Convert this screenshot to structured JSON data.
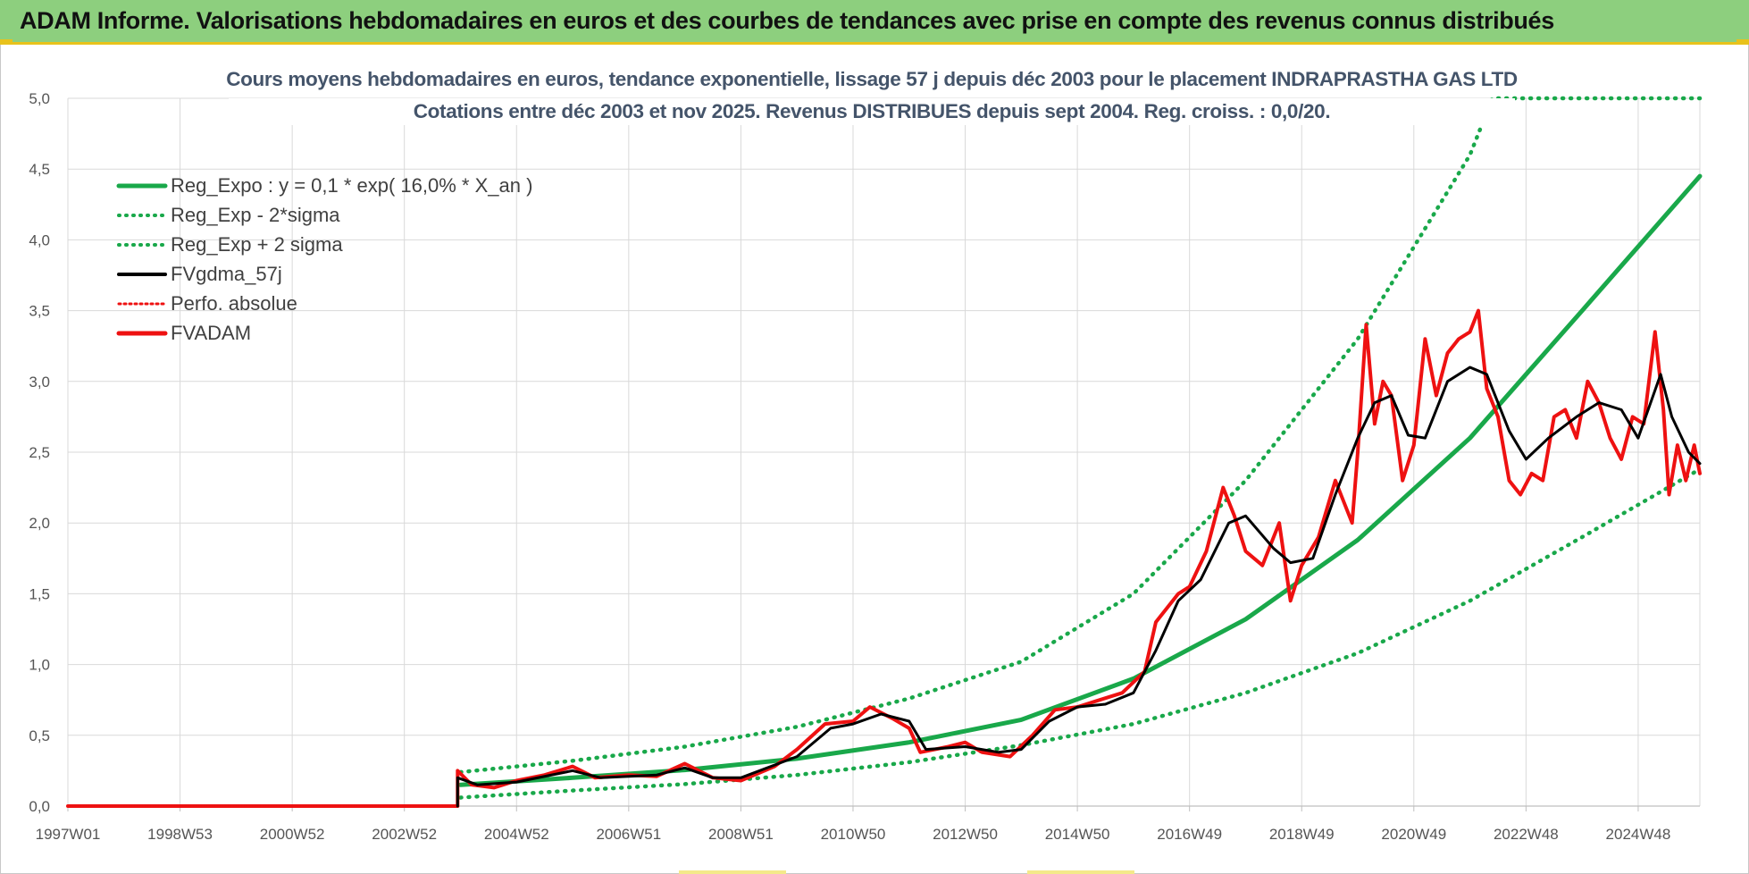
{
  "header": {
    "title": "ADAM Informe. Valorisations hebdomadaires en euros et des courbes de tendances avec prise en compte des revenus connus distribués"
  },
  "colors": {
    "banner": "#8dcf7e",
    "accent": "#e8c21c",
    "reg_green": "#19a84a",
    "fvgdma": "#000000",
    "fvadam": "#ee1111",
    "title_text": "#44546a"
  },
  "chart_data": {
    "type": "line",
    "title_lines": [
      "Cours moyens hebdomadaires en euros, tendance exponentielle, lissage 57 j depuis déc 2003 pour le placement INDRAPRASTHA GAS LTD",
      "Cotations entre déc 2003 et nov 2025.  Revenus DISTRIBUES depuis sept 2004.  Reg. croiss. : 0,0/20."
    ],
    "y_ticks": [
      "0,0",
      "0,5",
      "1,0",
      "1,5",
      "2,0",
      "2,5",
      "3,0",
      "3,5",
      "4,0",
      "4,5",
      "5,0"
    ],
    "ylim": [
      0,
      5
    ],
    "x_ticks": [
      {
        "label": "1997W01",
        "t": 1997.0
      },
      {
        "label": "1998W53",
        "t": 1999.0
      },
      {
        "label": "2000W52",
        "t": 2001.0
      },
      {
        "label": "2002W52",
        "t": 2003.0
      },
      {
        "label": "2004W52",
        "t": 2005.0
      },
      {
        "label": "2006W51",
        "t": 2007.0
      },
      {
        "label": "2008W51",
        "t": 2009.0
      },
      {
        "label": "2010W50",
        "t": 2011.0
      },
      {
        "label": "2012W50",
        "t": 2013.0
      },
      {
        "label": "2014W50",
        "t": 2015.0
      },
      {
        "label": "2016W49",
        "t": 2017.0
      },
      {
        "label": "2018W49",
        "t": 2019.0
      },
      {
        "label": "2020W49",
        "t": 2021.0
      },
      {
        "label": "2022W48",
        "t": 2023.0
      },
      {
        "label": "2024W48",
        "t": 2025.0
      }
    ],
    "xlim": [
      1997.0,
      2026.1
    ],
    "legend": [
      {
        "label": "Reg_Expo : y = 0,1 * exp( 16,0% *  X_an )",
        "style": "solid-green"
      },
      {
        "label": "Reg_Exp - 2*sigma",
        "style": "dotted-green"
      },
      {
        "label": "Reg_Exp + 2 sigma",
        "style": "dotted-green"
      },
      {
        "label": "FVgdma_57j",
        "style": "solid-black"
      },
      {
        "label": "Perfo. absolue",
        "style": "dotted-red"
      },
      {
        "label": "FVADAM",
        "style": "solid-red"
      }
    ],
    "series": [
      {
        "name": "Reg_Expo",
        "points": [
          [
            2004.0,
            0.15
          ],
          [
            2006.0,
            0.2
          ],
          [
            2008.0,
            0.255
          ],
          [
            2010.0,
            0.335
          ],
          [
            2012.0,
            0.45
          ],
          [
            2014.0,
            0.61
          ],
          [
            2016.0,
            0.9
          ],
          [
            2018.0,
            1.32
          ],
          [
            2020.0,
            1.88
          ],
          [
            2022.0,
            2.6
          ],
          [
            2024.0,
            3.5
          ],
          [
            2026.1,
            4.45
          ]
        ]
      },
      {
        "name": "Reg_Exp - 2*sigma",
        "points": [
          [
            2004.0,
            0.06
          ],
          [
            2006.0,
            0.11
          ],
          [
            2008.0,
            0.155
          ],
          [
            2010.0,
            0.22
          ],
          [
            2012.0,
            0.31
          ],
          [
            2014.0,
            0.43
          ],
          [
            2016.0,
            0.58
          ],
          [
            2018.0,
            0.8
          ],
          [
            2020.0,
            1.08
          ],
          [
            2022.0,
            1.45
          ],
          [
            2024.0,
            1.9
          ],
          [
            2026.1,
            2.38
          ]
        ]
      },
      {
        "name": "Reg_Exp + 2 sigma",
        "points": [
          [
            2004.0,
            0.24
          ],
          [
            2006.0,
            0.32
          ],
          [
            2008.0,
            0.42
          ],
          [
            2010.0,
            0.56
          ],
          [
            2012.0,
            0.76
          ],
          [
            2014.0,
            1.02
          ],
          [
            2016.0,
            1.5
          ],
          [
            2018.0,
            2.3
          ],
          [
            2020.0,
            3.3
          ],
          [
            2022.0,
            4.6
          ],
          [
            2022.4,
            5.0
          ],
          [
            2026.1,
            5.0
          ]
        ]
      },
      {
        "name": "FVgdma_57j",
        "points": [
          [
            2003.95,
            0.0
          ],
          [
            2003.95,
            0.2
          ],
          [
            2004.3,
            0.15
          ],
          [
            2005.0,
            0.17
          ],
          [
            2006.0,
            0.25
          ],
          [
            2006.5,
            0.2
          ],
          [
            2007.5,
            0.22
          ],
          [
            2008.0,
            0.27
          ],
          [
            2008.5,
            0.2
          ],
          [
            2009.0,
            0.2
          ],
          [
            2010.0,
            0.35
          ],
          [
            2010.6,
            0.55
          ],
          [
            2011.0,
            0.58
          ],
          [
            2011.5,
            0.65
          ],
          [
            2012.0,
            0.6
          ],
          [
            2012.3,
            0.4
          ],
          [
            2013.0,
            0.42
          ],
          [
            2013.6,
            0.38
          ],
          [
            2014.0,
            0.4
          ],
          [
            2014.5,
            0.6
          ],
          [
            2015.0,
            0.7
          ],
          [
            2015.5,
            0.72
          ],
          [
            2016.0,
            0.8
          ],
          [
            2016.4,
            1.1
          ],
          [
            2016.8,
            1.45
          ],
          [
            2017.2,
            1.6
          ],
          [
            2017.7,
            2.0
          ],
          [
            2018.0,
            2.05
          ],
          [
            2018.5,
            1.82
          ],
          [
            2018.8,
            1.72
          ],
          [
            2019.2,
            1.75
          ],
          [
            2019.6,
            2.2
          ],
          [
            2020.0,
            2.6
          ],
          [
            2020.3,
            2.85
          ],
          [
            2020.6,
            2.9
          ],
          [
            2020.9,
            2.62
          ],
          [
            2021.2,
            2.6
          ],
          [
            2021.6,
            3.0
          ],
          [
            2022.0,
            3.1
          ],
          [
            2022.3,
            3.05
          ],
          [
            2022.7,
            2.65
          ],
          [
            2023.0,
            2.45
          ],
          [
            2023.4,
            2.6
          ],
          [
            2023.9,
            2.75
          ],
          [
            2024.3,
            2.85
          ],
          [
            2024.7,
            2.8
          ],
          [
            2025.0,
            2.6
          ],
          [
            2025.4,
            3.05
          ],
          [
            2025.6,
            2.75
          ],
          [
            2025.9,
            2.5
          ],
          [
            2026.1,
            2.42
          ]
        ]
      },
      {
        "name": "Perfo. absolue",
        "points": [
          [
            1997.0,
            0.0
          ],
          [
            2003.95,
            0.0
          ]
        ]
      },
      {
        "name": "FVADAM",
        "points": [
          [
            1997.0,
            0.0
          ],
          [
            2003.95,
            0.0
          ],
          [
            2003.95,
            0.25
          ],
          [
            2004.2,
            0.15
          ],
          [
            2004.6,
            0.13
          ],
          [
            2005.0,
            0.18
          ],
          [
            2005.5,
            0.22
          ],
          [
            2006.0,
            0.28
          ],
          [
            2006.4,
            0.2
          ],
          [
            2007.0,
            0.22
          ],
          [
            2007.5,
            0.21
          ],
          [
            2008.0,
            0.3
          ],
          [
            2008.5,
            0.2
          ],
          [
            2009.0,
            0.18
          ],
          [
            2009.6,
            0.28
          ],
          [
            2010.0,
            0.4
          ],
          [
            2010.5,
            0.58
          ],
          [
            2011.0,
            0.6
          ],
          [
            2011.3,
            0.7
          ],
          [
            2011.7,
            0.62
          ],
          [
            2012.0,
            0.55
          ],
          [
            2012.2,
            0.38
          ],
          [
            2012.7,
            0.42
          ],
          [
            2013.0,
            0.45
          ],
          [
            2013.3,
            0.38
          ],
          [
            2013.8,
            0.35
          ],
          [
            2014.2,
            0.5
          ],
          [
            2014.6,
            0.68
          ],
          [
            2015.0,
            0.7
          ],
          [
            2015.4,
            0.75
          ],
          [
            2015.8,
            0.8
          ],
          [
            2016.2,
            0.95
          ],
          [
            2016.4,
            1.3
          ],
          [
            2016.8,
            1.5
          ],
          [
            2017.0,
            1.55
          ],
          [
            2017.3,
            1.8
          ],
          [
            2017.6,
            2.25
          ],
          [
            2017.8,
            2.05
          ],
          [
            2018.0,
            1.8
          ],
          [
            2018.3,
            1.7
          ],
          [
            2018.6,
            2.0
          ],
          [
            2018.8,
            1.45
          ],
          [
            2019.0,
            1.7
          ],
          [
            2019.3,
            1.9
          ],
          [
            2019.6,
            2.3
          ],
          [
            2019.9,
            2.0
          ],
          [
            2020.0,
            2.5
          ],
          [
            2020.15,
            3.4
          ],
          [
            2020.3,
            2.7
          ],
          [
            2020.45,
            3.0
          ],
          [
            2020.6,
            2.9
          ],
          [
            2020.8,
            2.3
          ],
          [
            2021.0,
            2.55
          ],
          [
            2021.2,
            3.3
          ],
          [
            2021.4,
            2.9
          ],
          [
            2021.6,
            3.2
          ],
          [
            2021.8,
            3.3
          ],
          [
            2022.0,
            3.35
          ],
          [
            2022.15,
            3.5
          ],
          [
            2022.3,
            2.95
          ],
          [
            2022.5,
            2.75
          ],
          [
            2022.7,
            2.3
          ],
          [
            2022.9,
            2.2
          ],
          [
            2023.1,
            2.35
          ],
          [
            2023.3,
            2.3
          ],
          [
            2023.5,
            2.75
          ],
          [
            2023.7,
            2.8
          ],
          [
            2023.9,
            2.6
          ],
          [
            2024.1,
            3.0
          ],
          [
            2024.3,
            2.85
          ],
          [
            2024.5,
            2.6
          ],
          [
            2024.7,
            2.45
          ],
          [
            2024.9,
            2.75
          ],
          [
            2025.1,
            2.7
          ],
          [
            2025.3,
            3.35
          ],
          [
            2025.45,
            2.8
          ],
          [
            2025.55,
            2.2
          ],
          [
            2025.7,
            2.55
          ],
          [
            2025.85,
            2.3
          ],
          [
            2026.0,
            2.55
          ],
          [
            2026.1,
            2.35
          ]
        ]
      }
    ]
  }
}
